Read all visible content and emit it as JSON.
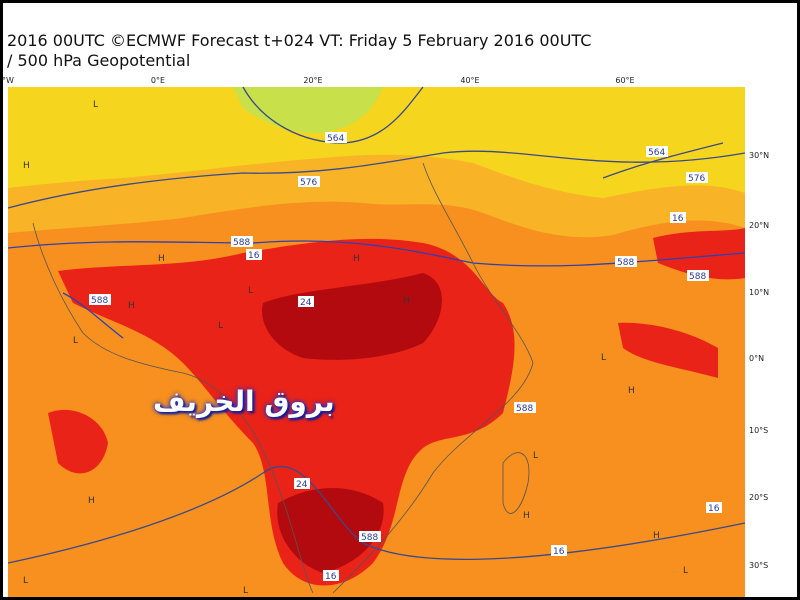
{
  "header": {
    "line1": "2016 00UTC ©ECMWF Forecast t+024 VT: Friday 5 February 2016 00UTC",
    "line2": "/ 500 hPa Geopotential"
  },
  "lon_labels": [
    "°W",
    "0°E",
    "20°E",
    "40°E",
    "60°E"
  ],
  "lat_labels": [
    "30°N",
    "20°N",
    "10°N",
    "0°N",
    "10°S",
    "20°S",
    "30°S"
  ],
  "contour_labels": [
    "564",
    "576",
    "564",
    "576",
    "588",
    "16",
    "16",
    "588",
    "588",
    "588",
    "24",
    "588",
    "24",
    "588",
    "16",
    "16",
    "16"
  ],
  "pressure_marks": [
    "L",
    "H",
    "L",
    "H",
    "L",
    "H",
    "H",
    "L",
    "H",
    "L",
    "H",
    "L",
    "H",
    "L",
    "H",
    "L",
    "H",
    "L"
  ],
  "watermark": "بروق الخريف"
}
